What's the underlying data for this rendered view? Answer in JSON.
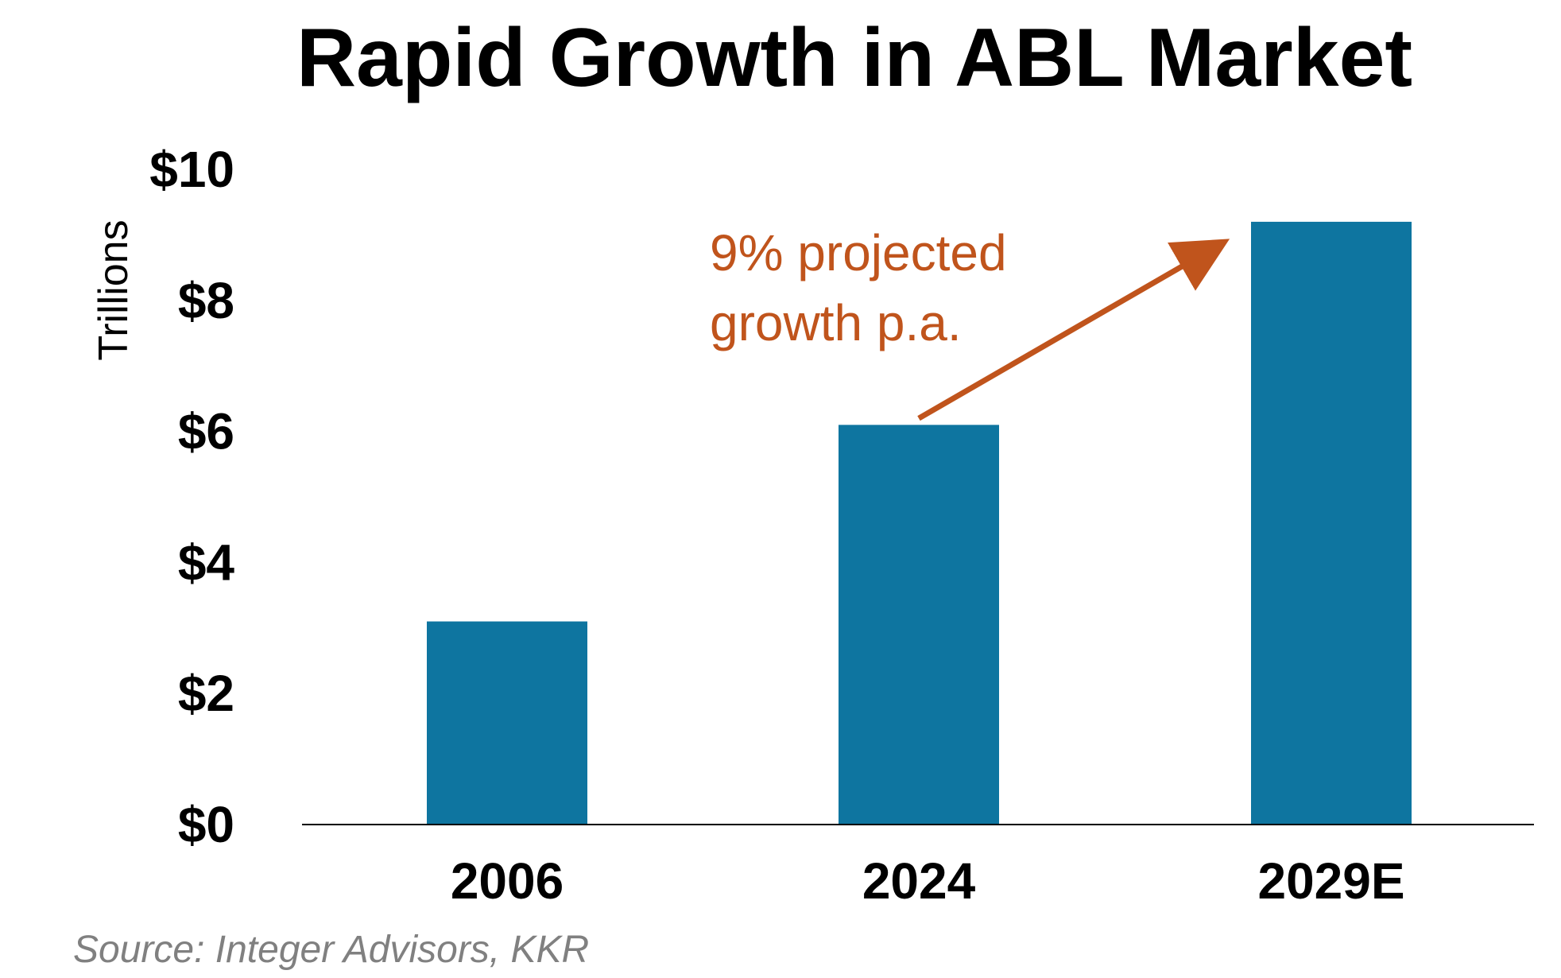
{
  "chart_data": {
    "type": "bar",
    "title": "Rapid Growth in ABL Market",
    "ylabel": "Trillions",
    "xlabel": "",
    "categories": [
      "2006",
      "2024",
      "2029E"
    ],
    "values": [
      3.1,
      6.1,
      9.2
    ],
    "ylim": [
      0,
      10
    ],
    "yticks": [
      0,
      2,
      4,
      6,
      8,
      10
    ],
    "ytick_labels": [
      "$0",
      "$2",
      "$4",
      "$6",
      "$8",
      "$10"
    ],
    "grid": false,
    "legend": "none",
    "annotation": {
      "lines": [
        "9% projected",
        "growth p.a."
      ],
      "arrow_from": {
        "x": "2024",
        "y": 6.2
      },
      "arrow_to": {
        "x": "2029E",
        "y": 9.0
      }
    },
    "source": "Source: Integer Advisors, KKR"
  },
  "colors": {
    "bar": "#0E75A0",
    "annotation": "#C0541C",
    "axis": "#000000",
    "source_text": "#808080"
  }
}
